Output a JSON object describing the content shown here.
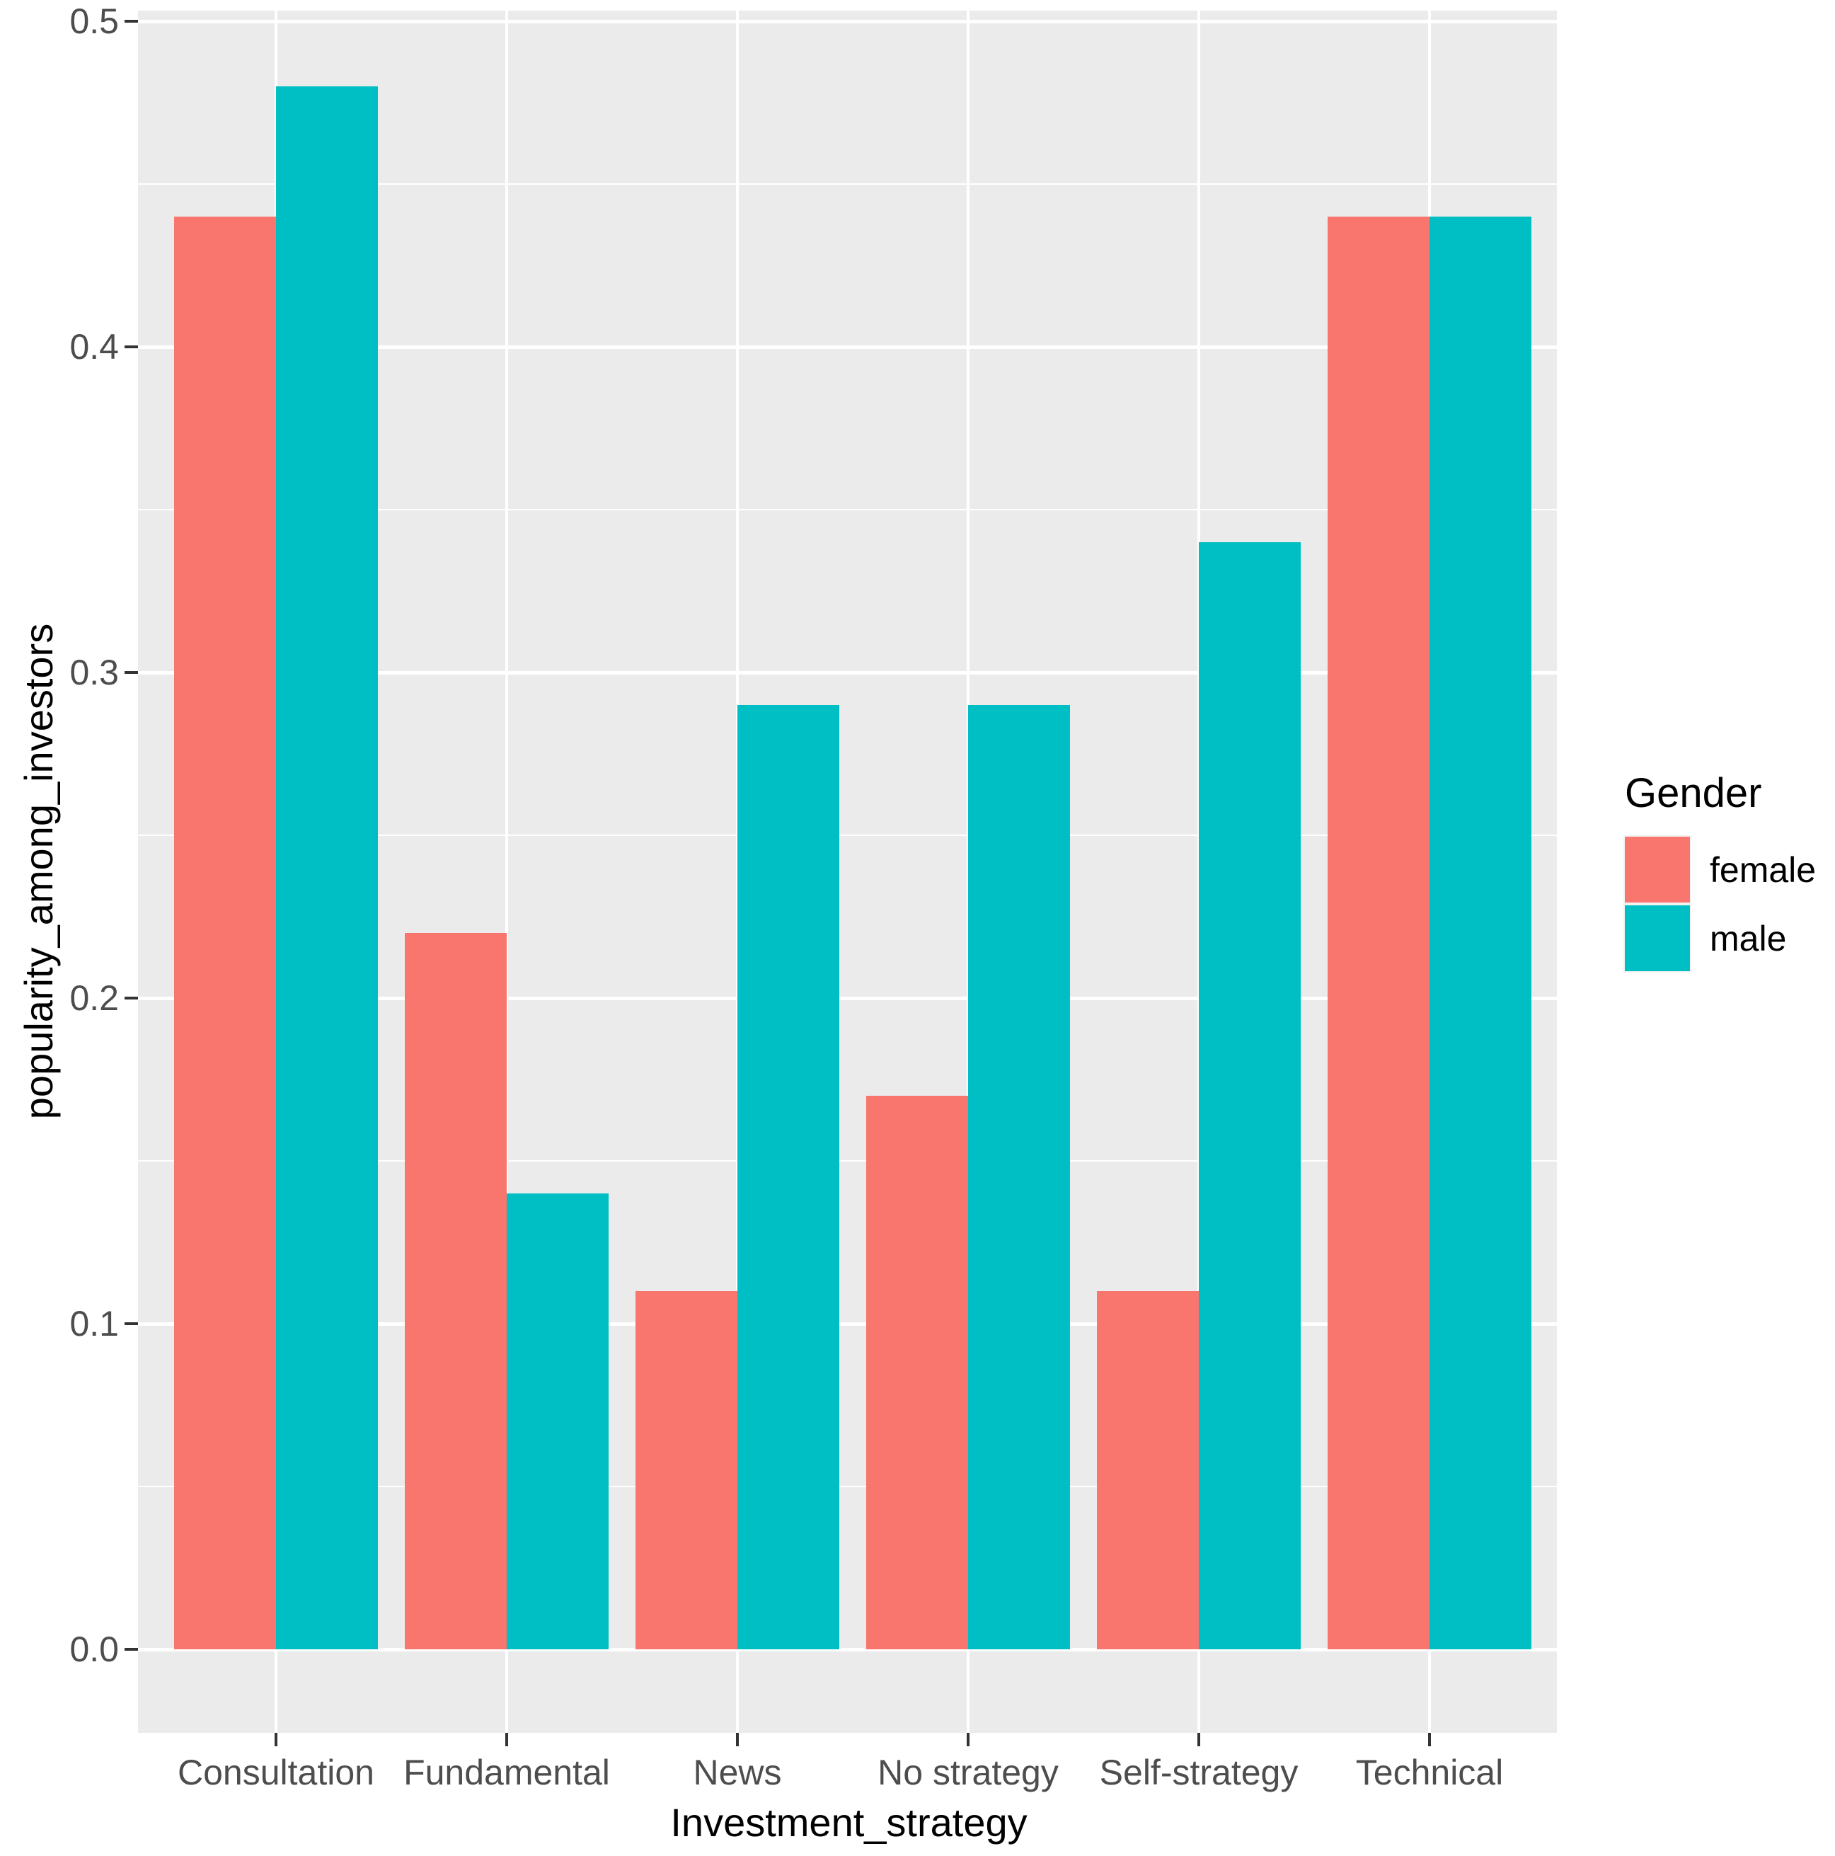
{
  "chart_data": {
    "type": "bar",
    "title": "",
    "categories": [
      "Consultation",
      "Fundamental",
      "News",
      "No strategy",
      "Self-strategy",
      "Technical"
    ],
    "series": [
      {
        "name": "female",
        "color": "#F8766D",
        "values": [
          0.44,
          0.22,
          0.11,
          0.17,
          0.11,
          0.44
        ]
      },
      {
        "name": "male",
        "color": "#00BFC4",
        "values": [
          0.48,
          0.14,
          0.29,
          0.29,
          0.34,
          0.44
        ]
      }
    ],
    "xlabel": "Investment_strategy",
    "ylabel": "popularity_among_investors",
    "ylim": [
      -0.024,
      0.504
    ],
    "y_ticks": [
      0.0,
      0.1,
      0.2,
      0.3,
      0.4,
      0.5
    ],
    "y_tick_labels": [
      "0.0",
      "0.1",
      "0.2",
      "0.3",
      "0.4",
      "0.5"
    ],
    "y_minor_ticks": [
      0.05,
      0.15,
      0.25,
      0.35,
      0.45
    ],
    "grid": true,
    "legend_position": "right",
    "legend_title": "Gender",
    "colors": {
      "panel_background": "#EBEBEB",
      "gridline": "#FFFFFF",
      "tick_mark": "#333333",
      "axis_text": "#4D4D4D",
      "title_text": "#000000",
      "page_background": "#FFFFFF"
    }
  },
  "legend": {
    "title": "Gender",
    "items": [
      {
        "label": "female",
        "color": "#F8766D"
      },
      {
        "label": "male",
        "color": "#00BFC4"
      }
    ]
  }
}
